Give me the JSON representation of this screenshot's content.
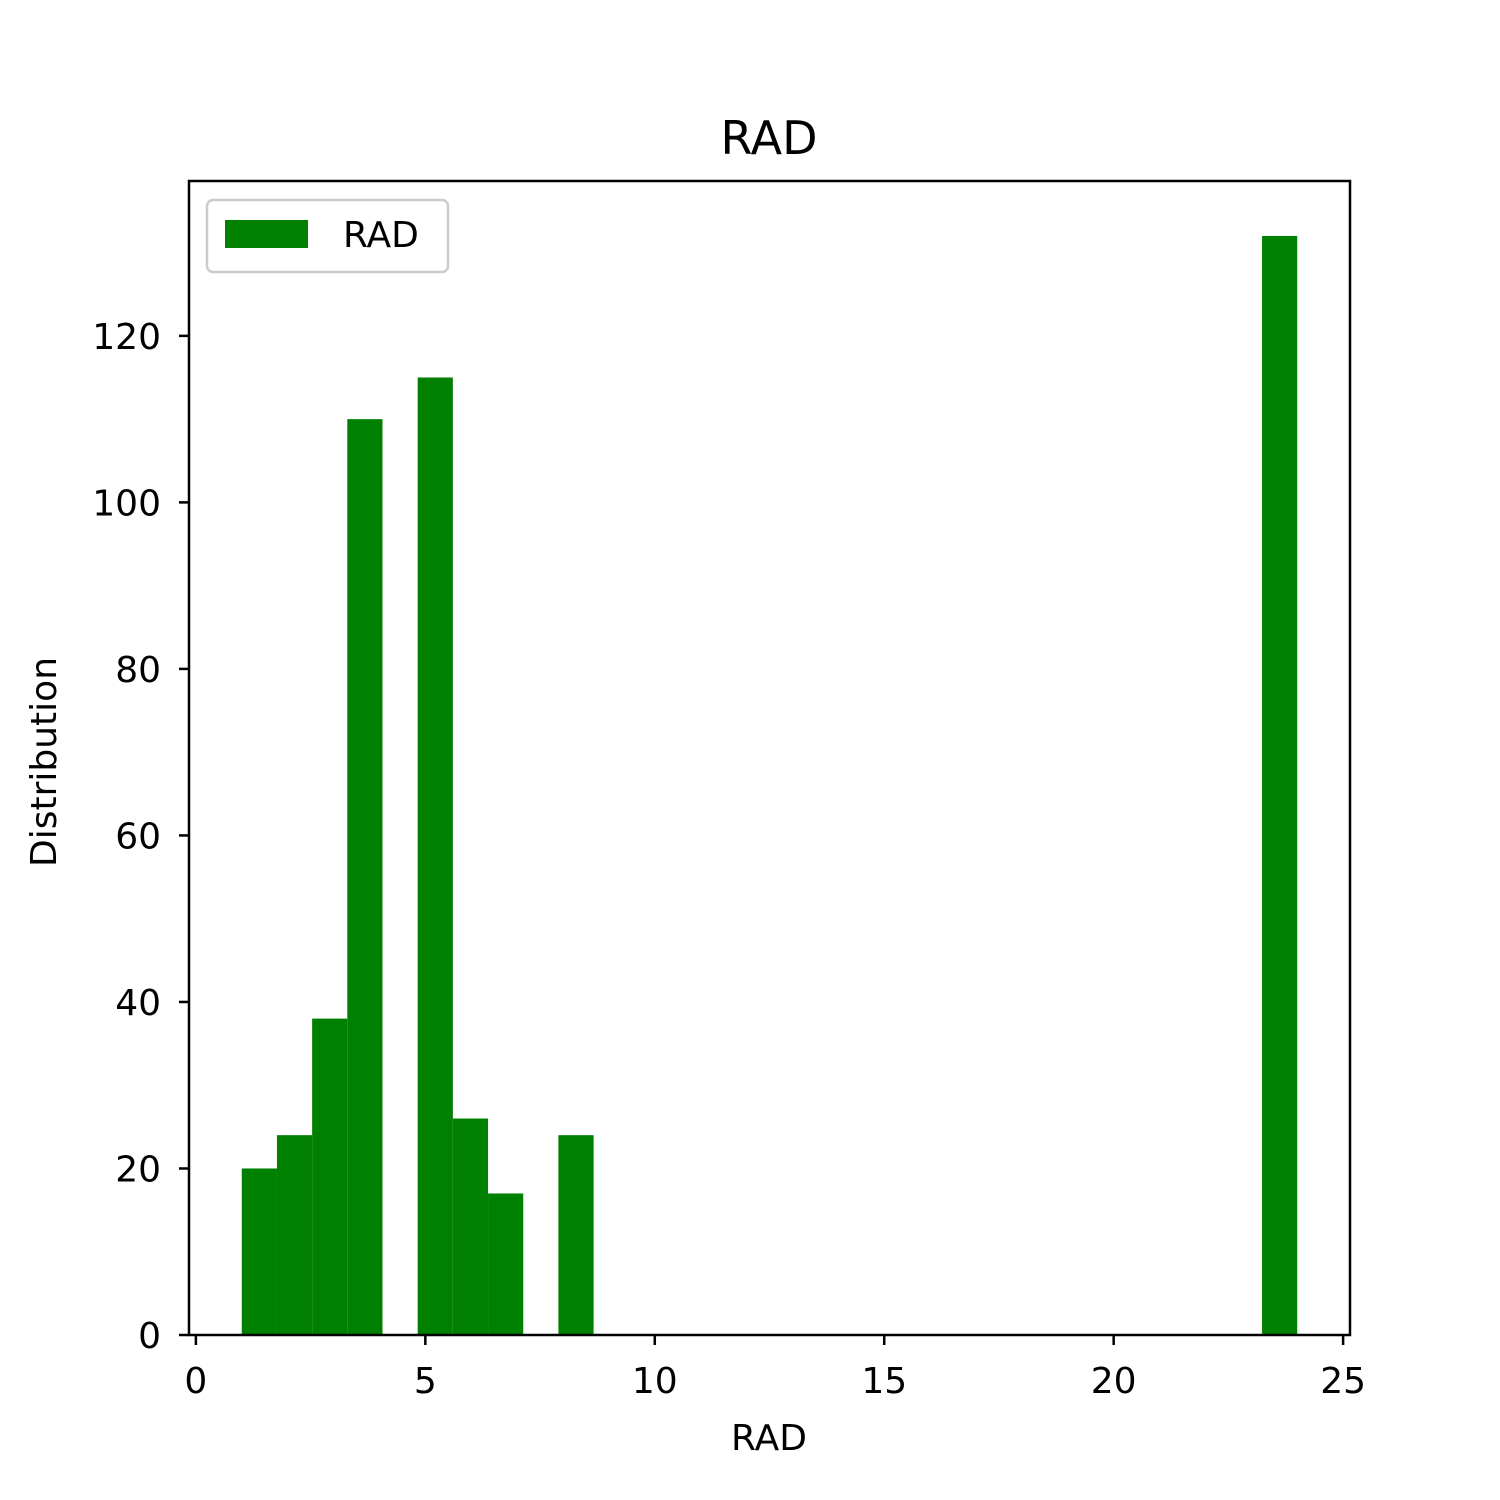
{
  "chart_data": {
    "type": "bar",
    "title": "RAD",
    "xlabel": "RAD",
    "ylabel": "Distribution",
    "xlim": [
      -0.15,
      25.15
    ],
    "ylim": [
      0,
      138.6
    ],
    "xticks": [
      0,
      5,
      10,
      15,
      20,
      25
    ],
    "yticks": [
      0,
      20,
      40,
      60,
      80,
      100,
      120
    ],
    "grid": false,
    "legend_position": "top-left",
    "series": [
      {
        "name": "RAD",
        "color": "#008000",
        "bin_width": 0.7667,
        "bins": [
          {
            "x0": 1.0,
            "value": 20
          },
          {
            "x0": 1.7667,
            "value": 24
          },
          {
            "x0": 2.5333,
            "value": 38
          },
          {
            "x0": 3.3,
            "value": 110
          },
          {
            "x0": 4.8333,
            "value": 115
          },
          {
            "x0": 5.6,
            "value": 26
          },
          {
            "x0": 6.3667,
            "value": 17
          },
          {
            "x0": 7.9,
            "value": 24
          },
          {
            "x0": 23.2333,
            "value": 132
          }
        ]
      }
    ]
  }
}
